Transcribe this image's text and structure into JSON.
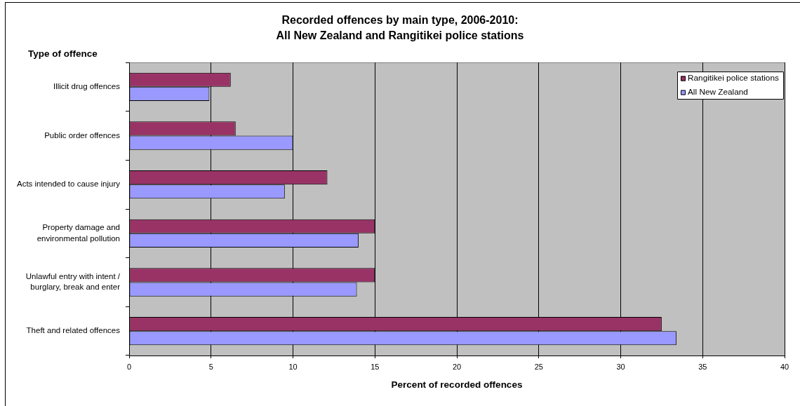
{
  "chart_data": {
    "type": "bar",
    "orientation": "horizontal",
    "title": "Recorded offences by main type, 2006-2010:\nAll New Zealand and Rangitikei police stations",
    "xlabel": "Percent of recorded offences",
    "ylabel": "Type of offence",
    "categories": [
      "Illicit drug offences",
      "Public order offences",
      "Acts intended to cause injury",
      "Property damage and\nenvironmental pollution",
      "Unlawful entry with intent /\nburglary, break and enter",
      "Theft and related offences"
    ],
    "series": [
      {
        "name": "Rangitikei police stations",
        "color": "#993366",
        "values": [
          6.2,
          6.5,
          12.1,
          15.0,
          15.0,
          32.5
        ]
      },
      {
        "name": "All New Zealand",
        "color": "#9999ff",
        "values": [
          4.9,
          10.0,
          9.5,
          14.0,
          13.9,
          33.4
        ]
      }
    ],
    "xlim": [
      0,
      40
    ],
    "xticks": [
      0,
      5,
      10,
      15,
      20,
      25,
      30,
      35,
      40
    ],
    "grid": "x",
    "legend": "top right"
  }
}
